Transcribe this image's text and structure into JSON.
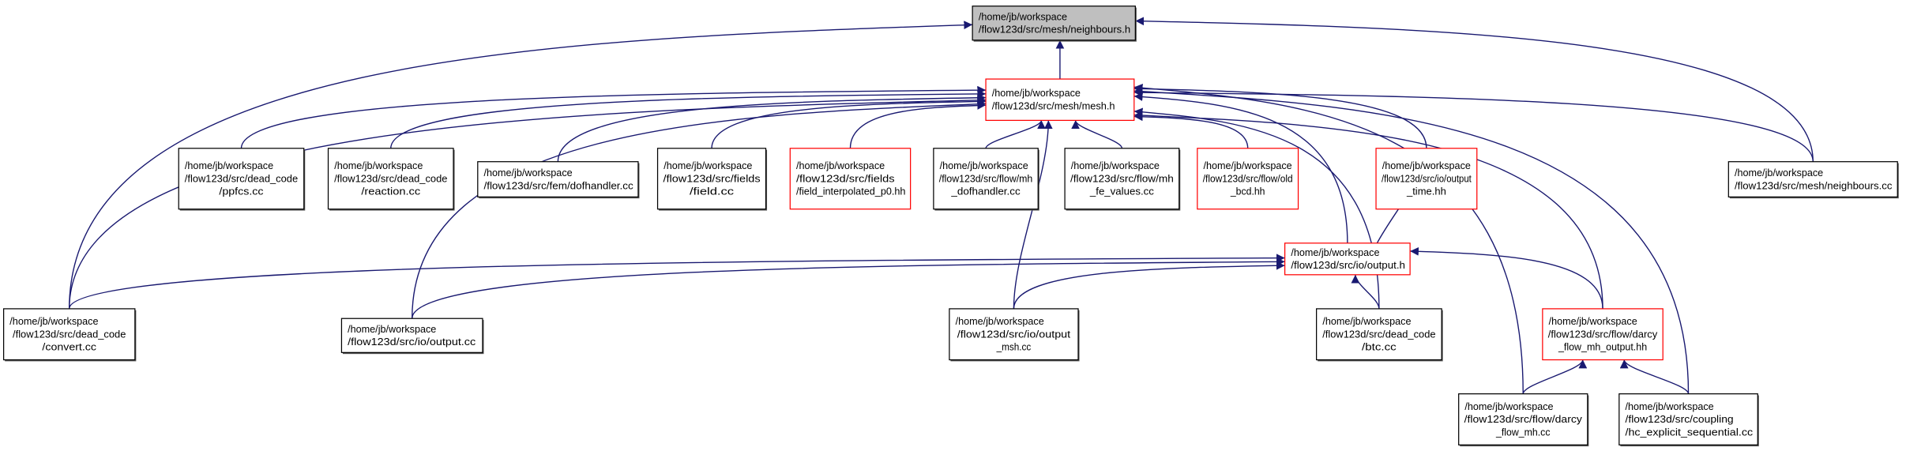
{
  "colors": {
    "edge": "#191970",
    "focus_fill": "#bfbfbf",
    "normal_border": "#000000",
    "incomplete_border": "#ff0000",
    "shadow": "#555555"
  },
  "nodes": [
    {
      "id": "neighbours_h",
      "lines": [
        "/home/jb/workspace",
        "/flow123d/src/mesh/neighbours.h"
      ],
      "kind": "focus",
      "align": "left"
    },
    {
      "id": "mesh_h",
      "lines": [
        "/home/jb/workspace",
        "/flow123d/src/mesh/mesh.h"
      ],
      "kind": "red",
      "align": "left"
    },
    {
      "id": "ppfcs",
      "lines": [
        "/home/jb/workspace",
        "/flow123d/src/dead_code",
        "/ppfcs.cc"
      ],
      "kind": "normal",
      "align": "center"
    },
    {
      "id": "reaction",
      "lines": [
        "/home/jb/workspace",
        "/flow123d/src/dead_code",
        "/reaction.cc"
      ],
      "kind": "normal",
      "align": "center"
    },
    {
      "id": "fem_dofhandler",
      "lines": [
        "/home/jb/workspace",
        "/flow123d/src/fem/dofhandler.cc"
      ],
      "kind": "normal",
      "align": "left"
    },
    {
      "id": "field_cc",
      "lines": [
        "/home/jb/workspace",
        "/flow123d/src/fields",
        "/field.cc"
      ],
      "kind": "normal",
      "align": "center"
    },
    {
      "id": "field_interp",
      "lines": [
        "/home/jb/workspace",
        "/flow123d/src/fields",
        "/field_interpolated_p0.hh"
      ],
      "kind": "red",
      "align": "left"
    },
    {
      "id": "mh_dofhandler",
      "lines": [
        "/home/jb/workspace",
        "/flow123d/src/flow/mh",
        "_dofhandler.cc"
      ],
      "kind": "normal",
      "align": "center"
    },
    {
      "id": "mh_fe_values",
      "lines": [
        "/home/jb/workspace",
        "/flow123d/src/flow/mh",
        "_fe_values.cc"
      ],
      "kind": "normal",
      "align": "center"
    },
    {
      "id": "old_bcd",
      "lines": [
        "/home/jb/workspace",
        "/flow123d/src/flow/old",
        "_bcd.hh"
      ],
      "kind": "red",
      "align": "center"
    },
    {
      "id": "output_time",
      "lines": [
        "/home/jb/workspace",
        "/flow123d/src/io/output",
        "_time.hh"
      ],
      "kind": "red",
      "align": "center"
    },
    {
      "id": "neighbours_cc",
      "lines": [
        "/home/jb/workspace",
        "/flow123d/src/mesh/neighbours.cc"
      ],
      "kind": "normal",
      "align": "left"
    },
    {
      "id": "output_h",
      "lines": [
        "/home/jb/workspace",
        "/flow123d/src/io/output.h"
      ],
      "kind": "red",
      "align": "left"
    },
    {
      "id": "convert",
      "lines": [
        "/home/jb/workspace",
        "/flow123d/src/dead_code",
        "/convert.cc"
      ],
      "kind": "normal",
      "align": "center"
    },
    {
      "id": "io_output_cc",
      "lines": [
        "/home/jb/workspace",
        "/flow123d/src/io/output.cc"
      ],
      "kind": "normal",
      "align": "left"
    },
    {
      "id": "output_msh",
      "lines": [
        "/home/jb/workspace",
        "/flow123d/src/io/output",
        "_msh.cc"
      ],
      "kind": "normal",
      "align": "center"
    },
    {
      "id": "btc",
      "lines": [
        "/home/jb/workspace",
        "/flow123d/src/dead_code",
        "/btc.cc"
      ],
      "kind": "normal",
      "align": "center"
    },
    {
      "id": "darcy_output",
      "lines": [
        "/home/jb/workspace",
        "/flow123d/src/flow/darcy",
        "_flow_mh_output.hh"
      ],
      "kind": "red",
      "align": "center"
    },
    {
      "id": "darcy_mh",
      "lines": [
        "/home/jb/workspace",
        "/flow123d/src/flow/darcy",
        "_flow_mh.cc"
      ],
      "kind": "normal",
      "align": "center"
    },
    {
      "id": "hc_explicit",
      "lines": [
        "/home/jb/workspace",
        "/flow123d/src/coupling",
        "/hc_explicit_sequential.cc"
      ],
      "kind": "normal",
      "align": "left"
    }
  ],
  "edges": [
    [
      "mesh_h",
      "neighbours_h"
    ],
    [
      "neighbours_cc",
      "neighbours_h"
    ],
    [
      "convert",
      "neighbours_h"
    ],
    [
      "ppfcs",
      "mesh_h"
    ],
    [
      "reaction",
      "mesh_h"
    ],
    [
      "fem_dofhandler",
      "mesh_h"
    ],
    [
      "field_cc",
      "mesh_h"
    ],
    [
      "field_interp",
      "mesh_h"
    ],
    [
      "mh_dofhandler",
      "mesh_h"
    ],
    [
      "mh_fe_values",
      "mesh_h"
    ],
    [
      "old_bcd",
      "mesh_h"
    ],
    [
      "output_time",
      "mesh_h"
    ],
    [
      "neighbours_cc",
      "mesh_h"
    ],
    [
      "output_h",
      "mesh_h"
    ],
    [
      "convert",
      "mesh_h"
    ],
    [
      "io_output_cc",
      "mesh_h"
    ],
    [
      "output_msh",
      "mesh_h"
    ],
    [
      "btc",
      "mesh_h"
    ],
    [
      "darcy_output",
      "mesh_h"
    ],
    [
      "darcy_mh",
      "mesh_h"
    ],
    [
      "hc_explicit",
      "mesh_h"
    ],
    [
      "output_time",
      "output_h"
    ],
    [
      "convert",
      "output_h"
    ],
    [
      "io_output_cc",
      "output_h"
    ],
    [
      "output_msh",
      "output_h"
    ],
    [
      "btc",
      "output_h"
    ],
    [
      "darcy_output",
      "output_h"
    ],
    [
      "darcy_mh",
      "darcy_output"
    ],
    [
      "hc_explicit",
      "darcy_output"
    ]
  ]
}
